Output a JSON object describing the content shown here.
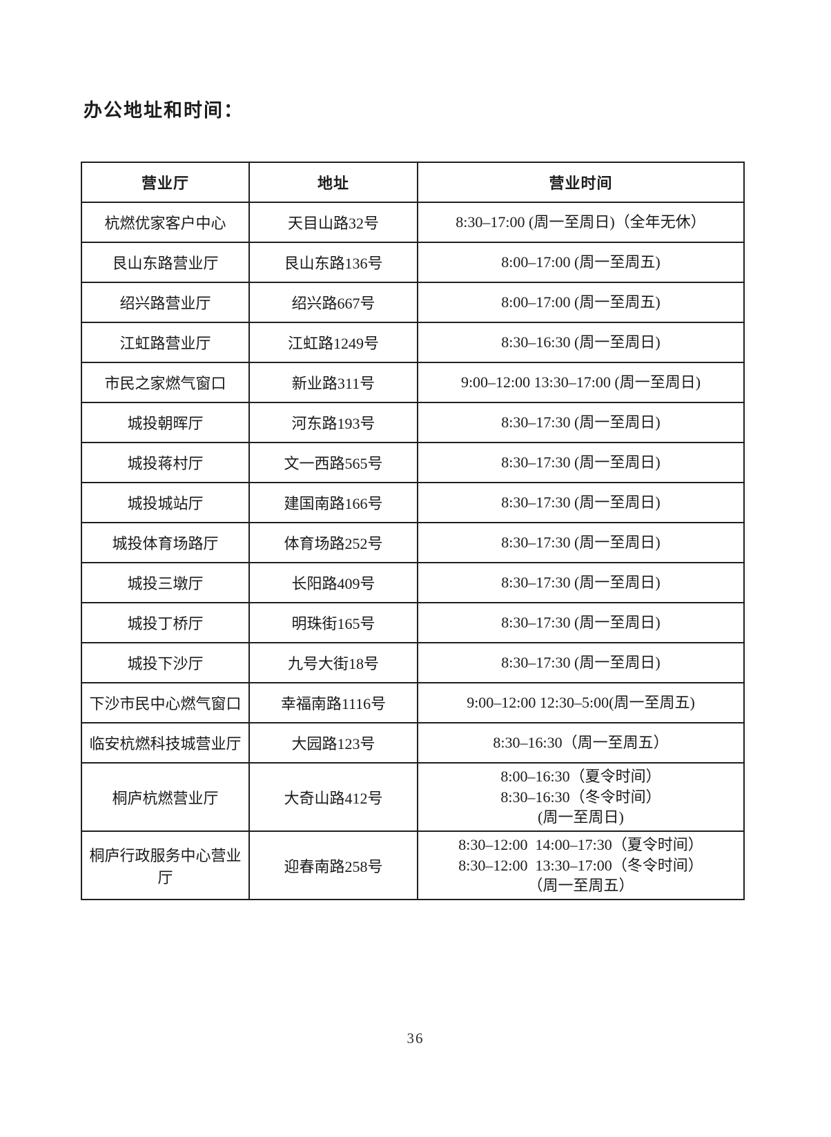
{
  "page": {
    "title": "办公地址和时间：",
    "page_number": "36"
  },
  "table": {
    "headers": [
      "营业厅",
      "地址",
      "营业时间"
    ],
    "rows": [
      {
        "hall": "杭燃优家客户中心",
        "address": "天目山路32号",
        "hours": [
          "8:30–17:00 (周一至周日)（全年无休）"
        ]
      },
      {
        "hall": "艮山东路营业厅",
        "address": "艮山东路136号",
        "hours": [
          "8:00–17:00 (周一至周五)"
        ]
      },
      {
        "hall": "绍兴路营业厅",
        "address": "绍兴路667号",
        "hours": [
          "8:00–17:00 (周一至周五)"
        ]
      },
      {
        "hall": "江虹路营业厅",
        "address": "江虹路1249号",
        "hours": [
          "8:30–16:30 (周一至周日)"
        ]
      },
      {
        "hall": "市民之家燃气窗口",
        "address": "新业路311号",
        "hours": [
          "9:00–12:00 13:30–17:00 (周一至周日)"
        ]
      },
      {
        "hall": "城投朝晖厅",
        "address": "河东路193号",
        "hours": [
          "8:30–17:30 (周一至周日)"
        ]
      },
      {
        "hall": "城投蒋村厅",
        "address": "文一西路565号",
        "hours": [
          "8:30–17:30 (周一至周日)"
        ]
      },
      {
        "hall": "城投城站厅",
        "address": "建国南路166号",
        "hours": [
          "8:30–17:30 (周一至周日)"
        ]
      },
      {
        "hall": "城投体育场路厅",
        "address": "体育场路252号",
        "hours": [
          "8:30–17:30 (周一至周日)"
        ]
      },
      {
        "hall": "城投三墩厅",
        "address": "长阳路409号",
        "hours": [
          "8:30–17:30 (周一至周日)"
        ]
      },
      {
        "hall": "城投丁桥厅",
        "address": "明珠街165号",
        "hours": [
          "8:30–17:30 (周一至周日)"
        ]
      },
      {
        "hall": "城投下沙厅",
        "address": "九号大街18号",
        "hours": [
          "8:30–17:30 (周一至周日)"
        ]
      },
      {
        "hall": "下沙市民中心燃气窗口",
        "address": "幸福南路1116号",
        "hours": [
          "9:00–12:00 12:30–5:00(周一至周五)"
        ]
      },
      {
        "hall": "临安杭燃科技城营业厅",
        "address": "大园路123号",
        "hours": [
          "8:30–16:30（周一至周五）"
        ]
      },
      {
        "hall": "桐庐杭燃营业厅",
        "address": "大奇山路412号",
        "hours": [
          "8:00–16:30（夏令时间）",
          "8:30–16:30（冬令时间）",
          "(周一至周日)"
        ]
      },
      {
        "hall": "桐庐行政服务中心营业厅",
        "address": "迎春南路258号",
        "hours": [
          "8:30–12:00  14:00–17:30（夏令时间）",
          "8:30–12:00  13:30–17:00（冬令时间）",
          "（周一至周五）"
        ]
      }
    ]
  }
}
